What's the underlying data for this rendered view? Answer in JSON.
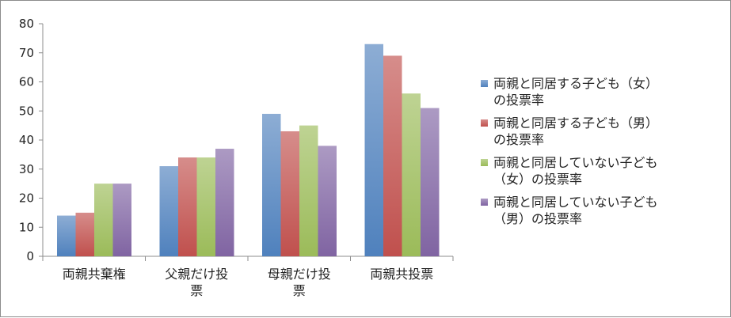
{
  "chart_data": {
    "type": "bar",
    "categories": [
      "両親共棄権",
      "父親だけ投票",
      "母親だけ投票",
      "両親共投票"
    ],
    "category_lines": [
      [
        "両親共棄権"
      ],
      [
        "父親だけ投",
        "票"
      ],
      [
        "母親だけ投",
        "票"
      ],
      [
        "両親共投票"
      ]
    ],
    "series": [
      {
        "name": "両親と同居する子ども（女）の投票率",
        "label_lines": "両親と同居する子ども（女）\nの投票率",
        "color": "#4f81bd",
        "values": [
          14,
          31,
          49,
          73
        ]
      },
      {
        "name": "両親と同居する子ども（男）の投票率",
        "label_lines": "両親と同居する子ども（男）\nの投票率",
        "color": "#c0504d",
        "values": [
          15,
          34,
          43,
          69
        ]
      },
      {
        "name": "両親と同居していない子ども（女）の投票率",
        "label_lines": "両親と同居していない子ども\n（女）の投票率",
        "color": "#9bbb59",
        "values": [
          25,
          34,
          45,
          56
        ]
      },
      {
        "name": "両親と同居していない子ども（男）の投票率",
        "label_lines": "両親と同居していない子ども\n（男）の投票率",
        "color": "#8064a2",
        "values": [
          25,
          37,
          38,
          51
        ]
      }
    ],
    "ylim": [
      0,
      80
    ],
    "yticks": [
      "0",
      "10",
      "20",
      "30",
      "40",
      "50",
      "60",
      "70",
      "80"
    ],
    "title": "",
    "xlabel": "",
    "ylabel": "",
    "grid": false,
    "legend_position": "right"
  }
}
